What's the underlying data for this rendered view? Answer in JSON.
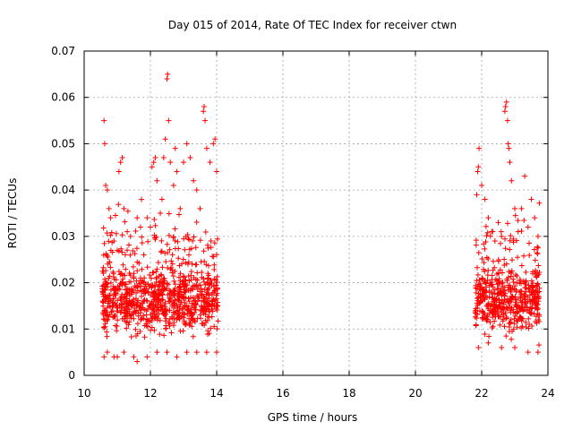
{
  "chart_data": {
    "type": "scatter",
    "title": "Day 015 of 2014, Rate Of TEC Index for receiver ctwn",
    "xlabel": "GPS time / hours",
    "ylabel": "ROTI / TECUs",
    "xlim": [
      10,
      24
    ],
    "ylim": [
      0,
      0.07
    ],
    "xticks": [
      10,
      12,
      14,
      16,
      18,
      20,
      22,
      24
    ],
    "xtick_labels": [
      "10",
      "12",
      "14",
      "16",
      "18",
      "20",
      "22",
      "24"
    ],
    "yticks": [
      0,
      0.01,
      0.02,
      0.03,
      0.04,
      0.05,
      0.06,
      0.07
    ],
    "ytick_labels": [
      "0",
      "0.01",
      "0.02",
      "0.03",
      "0.04",
      "0.05",
      "0.06",
      "0.07"
    ],
    "grid": true,
    "marker": "+",
    "color": "#ff0000",
    "series": [
      {
        "name": "ROTI",
        "segments": [
          {
            "x_start": 10.55,
            "x_end": 14.05
          },
          {
            "x_start": 21.8,
            "x_end": 23.75
          }
        ],
        "points": [
          [
            10.6,
            0.055
          ],
          [
            10.62,
            0.05
          ],
          [
            10.65,
            0.041
          ],
          [
            10.7,
            0.04
          ],
          [
            10.75,
            0.036
          ],
          [
            10.8,
            0.034
          ],
          [
            10.9,
            0.029
          ],
          [
            11.0,
            0.027
          ],
          [
            11.05,
            0.044
          ],
          [
            11.1,
            0.046
          ],
          [
            11.15,
            0.047
          ],
          [
            11.2,
            0.036
          ],
          [
            11.3,
            0.031
          ],
          [
            11.4,
            0.03
          ],
          [
            11.5,
            0.022
          ],
          [
            11.6,
            0.034
          ],
          [
            11.7,
            0.032
          ],
          [
            11.8,
            0.026
          ],
          [
            11.9,
            0.034
          ],
          [
            12.0,
            0.032
          ],
          [
            12.05,
            0.045
          ],
          [
            12.1,
            0.046
          ],
          [
            12.15,
            0.047
          ],
          [
            12.2,
            0.042
          ],
          [
            12.3,
            0.035
          ],
          [
            12.35,
            0.038
          ],
          [
            12.4,
            0.047
          ],
          [
            12.45,
            0.051
          ],
          [
            12.5,
            0.064
          ],
          [
            12.52,
            0.065
          ],
          [
            12.55,
            0.055
          ],
          [
            12.6,
            0.046
          ],
          [
            12.7,
            0.041
          ],
          [
            12.75,
            0.049
          ],
          [
            12.8,
            0.044
          ],
          [
            12.9,
            0.036
          ],
          [
            13.0,
            0.046
          ],
          [
            13.1,
            0.05
          ],
          [
            13.2,
            0.047
          ],
          [
            13.3,
            0.042
          ],
          [
            13.4,
            0.04
          ],
          [
            13.5,
            0.036
          ],
          [
            13.6,
            0.057
          ],
          [
            13.62,
            0.058
          ],
          [
            13.65,
            0.055
          ],
          [
            13.7,
            0.049
          ],
          [
            13.8,
            0.046
          ],
          [
            13.9,
            0.05
          ],
          [
            13.95,
            0.051
          ],
          [
            14.0,
            0.044
          ],
          [
            10.6,
            0.004
          ],
          [
            10.7,
            0.005
          ],
          [
            10.9,
            0.004
          ],
          [
            11.0,
            0.004
          ],
          [
            11.2,
            0.005
          ],
          [
            11.5,
            0.004
          ],
          [
            11.6,
            0.003
          ],
          [
            11.9,
            0.004
          ],
          [
            12.2,
            0.005
          ],
          [
            12.5,
            0.005
          ],
          [
            12.8,
            0.004
          ],
          [
            13.1,
            0.005
          ],
          [
            13.4,
            0.005
          ],
          [
            13.7,
            0.005
          ],
          [
            14.0,
            0.005
          ],
          [
            21.85,
            0.039
          ],
          [
            21.88,
            0.044
          ],
          [
            21.9,
            0.045
          ],
          [
            21.92,
            0.049
          ],
          [
            22.0,
            0.041
          ],
          [
            22.1,
            0.038
          ],
          [
            22.2,
            0.034
          ],
          [
            22.3,
            0.031
          ],
          [
            22.4,
            0.029
          ],
          [
            22.5,
            0.033
          ],
          [
            22.6,
            0.03
          ],
          [
            22.7,
            0.057
          ],
          [
            22.72,
            0.058
          ],
          [
            22.75,
            0.059
          ],
          [
            22.78,
            0.055
          ],
          [
            22.8,
            0.05
          ],
          [
            22.82,
            0.049
          ],
          [
            22.85,
            0.046
          ],
          [
            22.9,
            0.042
          ],
          [
            23.0,
            0.036
          ],
          [
            23.1,
            0.031
          ],
          [
            23.2,
            0.036
          ],
          [
            23.3,
            0.043
          ],
          [
            23.4,
            0.032
          ],
          [
            23.5,
            0.038
          ],
          [
            23.6,
            0.034
          ],
          [
            23.7,
            0.03
          ],
          [
            21.9,
            0.006
          ],
          [
            22.2,
            0.007
          ],
          [
            22.6,
            0.006
          ],
          [
            23.0,
            0.006
          ],
          [
            23.4,
            0.005
          ],
          [
            23.7,
            0.005
          ]
        ]
      }
    ]
  }
}
